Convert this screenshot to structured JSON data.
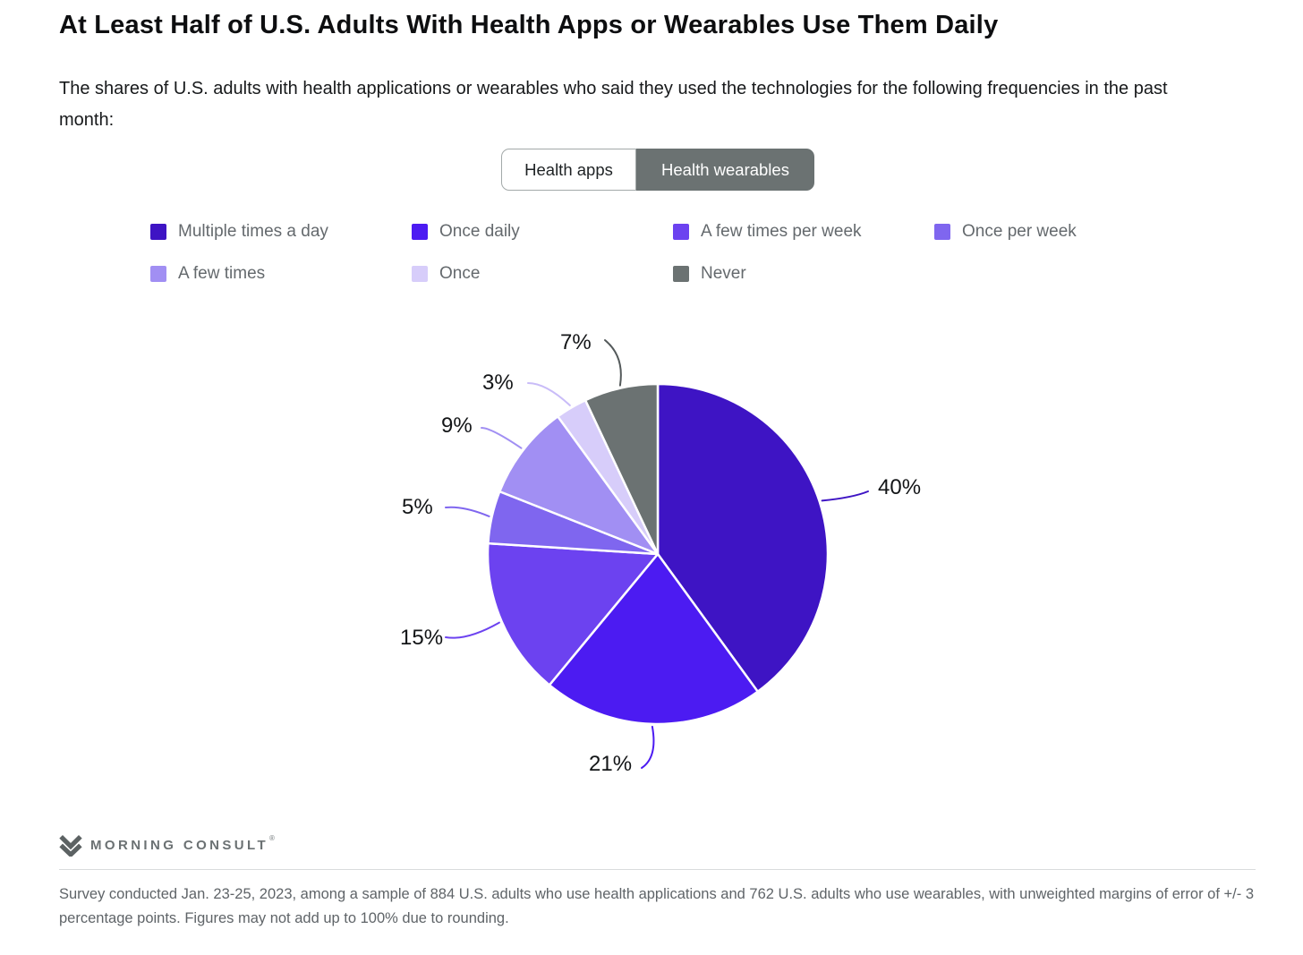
{
  "page": {
    "title": "At Least Half of U.S. Adults With Health Apps or Wearables Use Them Daily",
    "subtitle": "The shares of U.S. adults with health applications or wearables who said they used the technologies for the following frequencies in the past month:"
  },
  "toggle": {
    "options": [
      {
        "label": "Health apps",
        "selected": false
      },
      {
        "label": "Health wearables",
        "selected": true
      }
    ],
    "selected_bg": "#6B7272",
    "unselected_bg": "#FFFFFF"
  },
  "chart_data": {
    "type": "pie",
    "title": "At Least Half of U.S. Adults With Health Apps or Wearables Use Them Daily",
    "categories": [
      "Multiple times a day",
      "Once daily",
      "A few times per week",
      "Once per week",
      "A few times",
      "Once",
      "Never"
    ],
    "values": [
      40,
      21,
      15,
      5,
      9,
      3,
      7
    ],
    "unit": "%",
    "colors": [
      "#3E14C4",
      "#4C1BF2",
      "#6C42F0",
      "#7F66EF",
      "#A18FF3",
      "#D7CDFA",
      "#6B7272"
    ],
    "leader_color_overrides": {
      "5": "#C9BCF8",
      "6": "#545A5B"
    },
    "start_angle_deg": 0,
    "direction": "clockwise",
    "legend_position": "top",
    "data_labels": [
      "40%",
      "21%",
      "15%",
      "5%",
      "9%",
      "3%",
      "7%"
    ]
  },
  "footer": {
    "logo_text": "MORNING CONSULT",
    "logo_mark": "®",
    "note": "Survey conducted Jan. 23-25, 2023, among a sample of 884 U.S. adults who use health applications and 762 U.S. adults who use wearables, with unweighted margins of error of +/- 3 percentage points. Figures may not add up to 100% due to rounding."
  }
}
